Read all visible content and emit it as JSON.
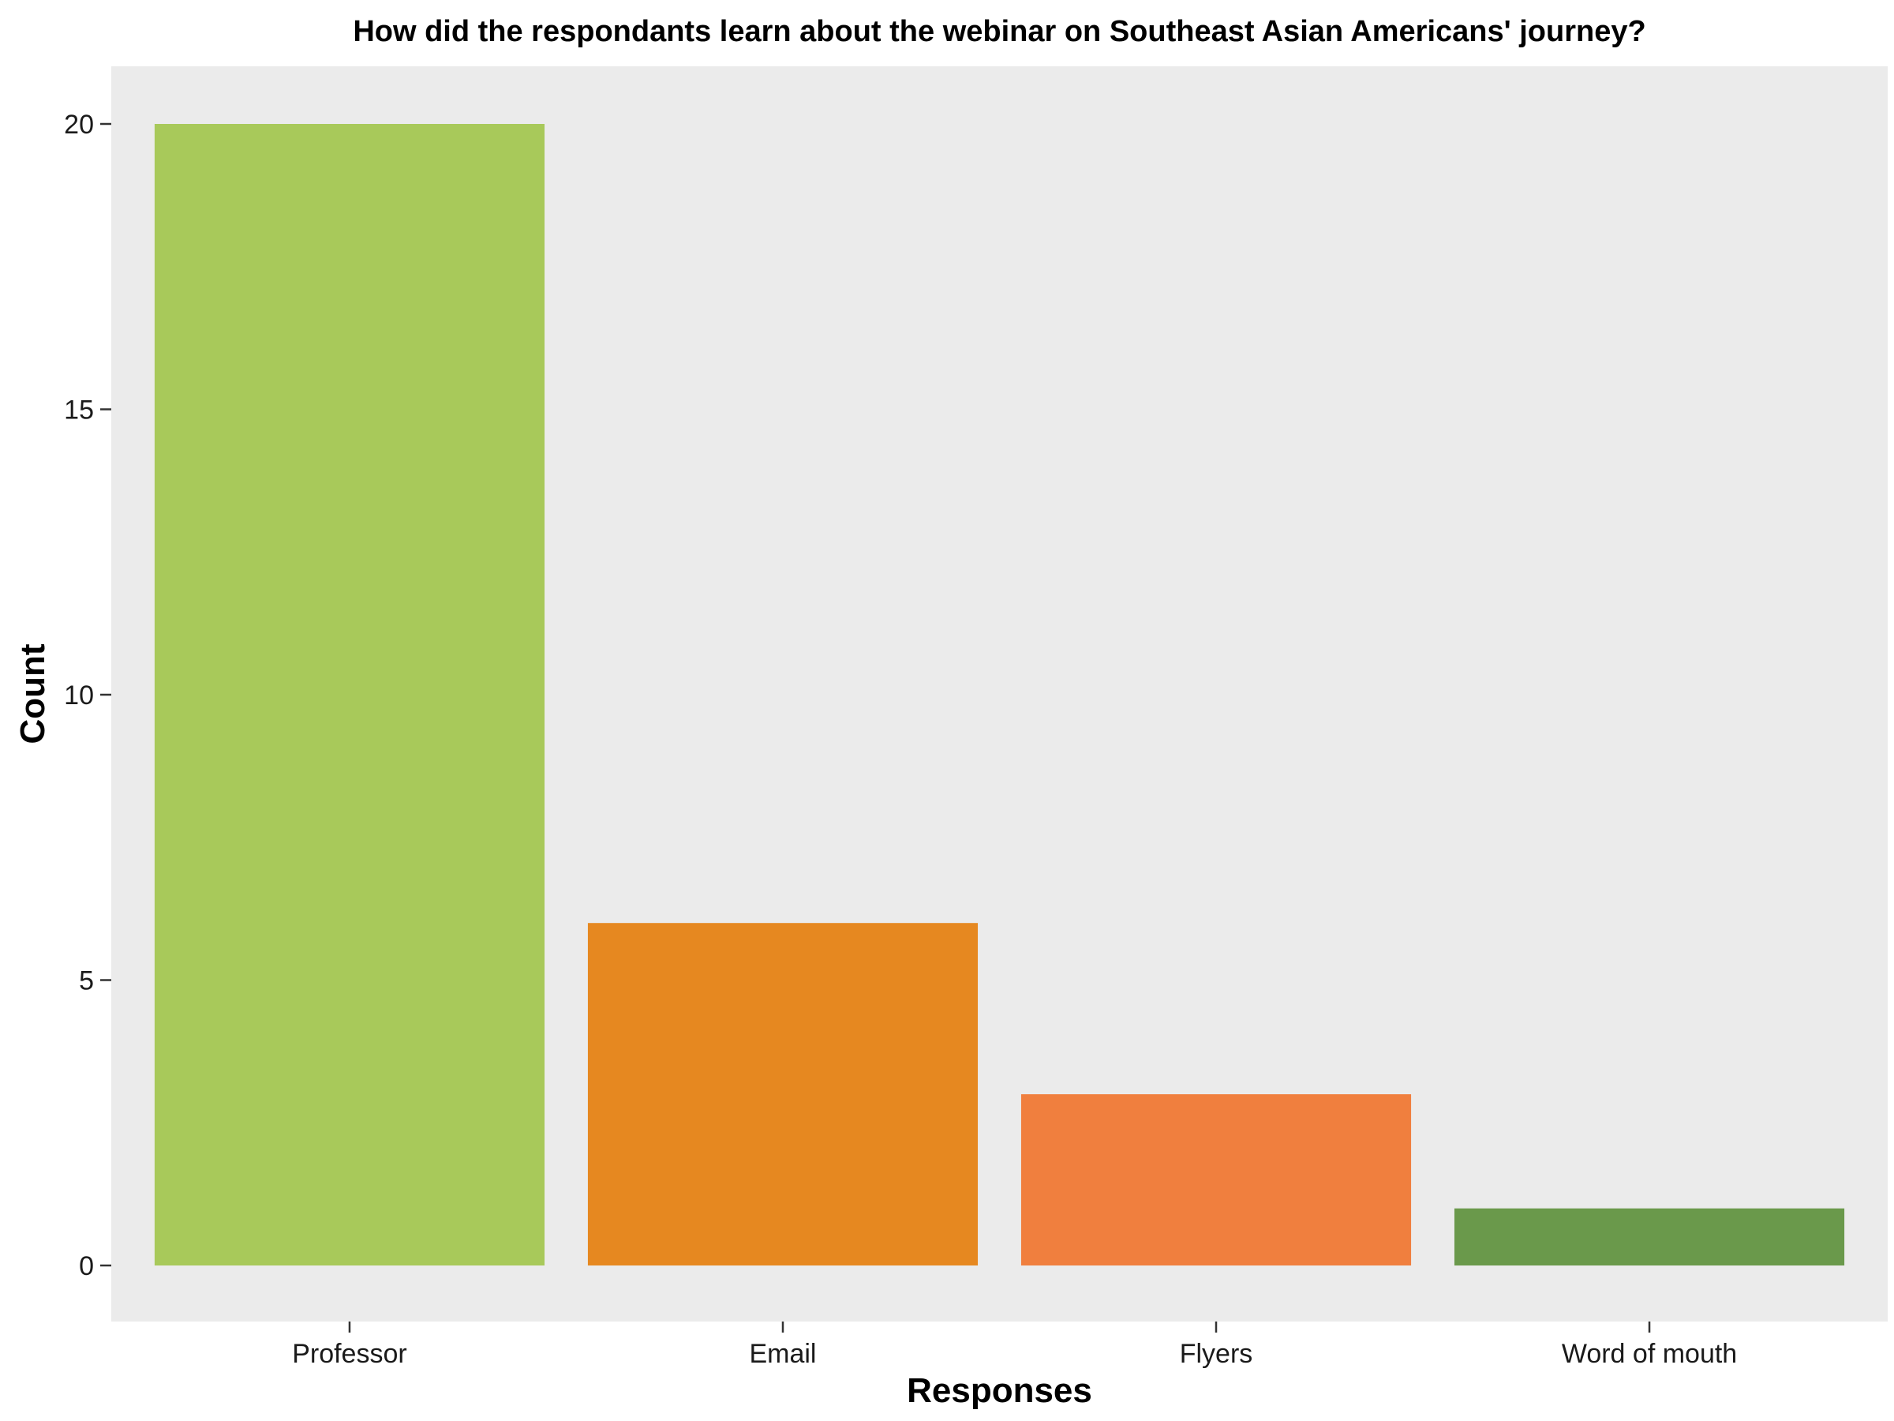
{
  "chart_data": {
    "type": "bar",
    "title": "How did the respondants learn about the webinar on Southeast Asian Americans' journey?",
    "xlabel": "Responses",
    "ylabel": "Count",
    "categories": [
      "Professor",
      "Email",
      "Flyers",
      "Word of mouth"
    ],
    "values": [
      20,
      6,
      3,
      1
    ],
    "bar_colors": [
      "#A8C95A",
      "#E68820",
      "#F07F3E",
      "#6A994B"
    ],
    "ylim": [
      0,
      21
    ],
    "yticks": [
      0,
      5,
      10,
      15,
      20
    ],
    "ytick_labels": [
      "0",
      "5",
      "10",
      "15",
      "20"
    ],
    "grid": false,
    "legend": "none",
    "panel_background": "#EBEBEB"
  }
}
